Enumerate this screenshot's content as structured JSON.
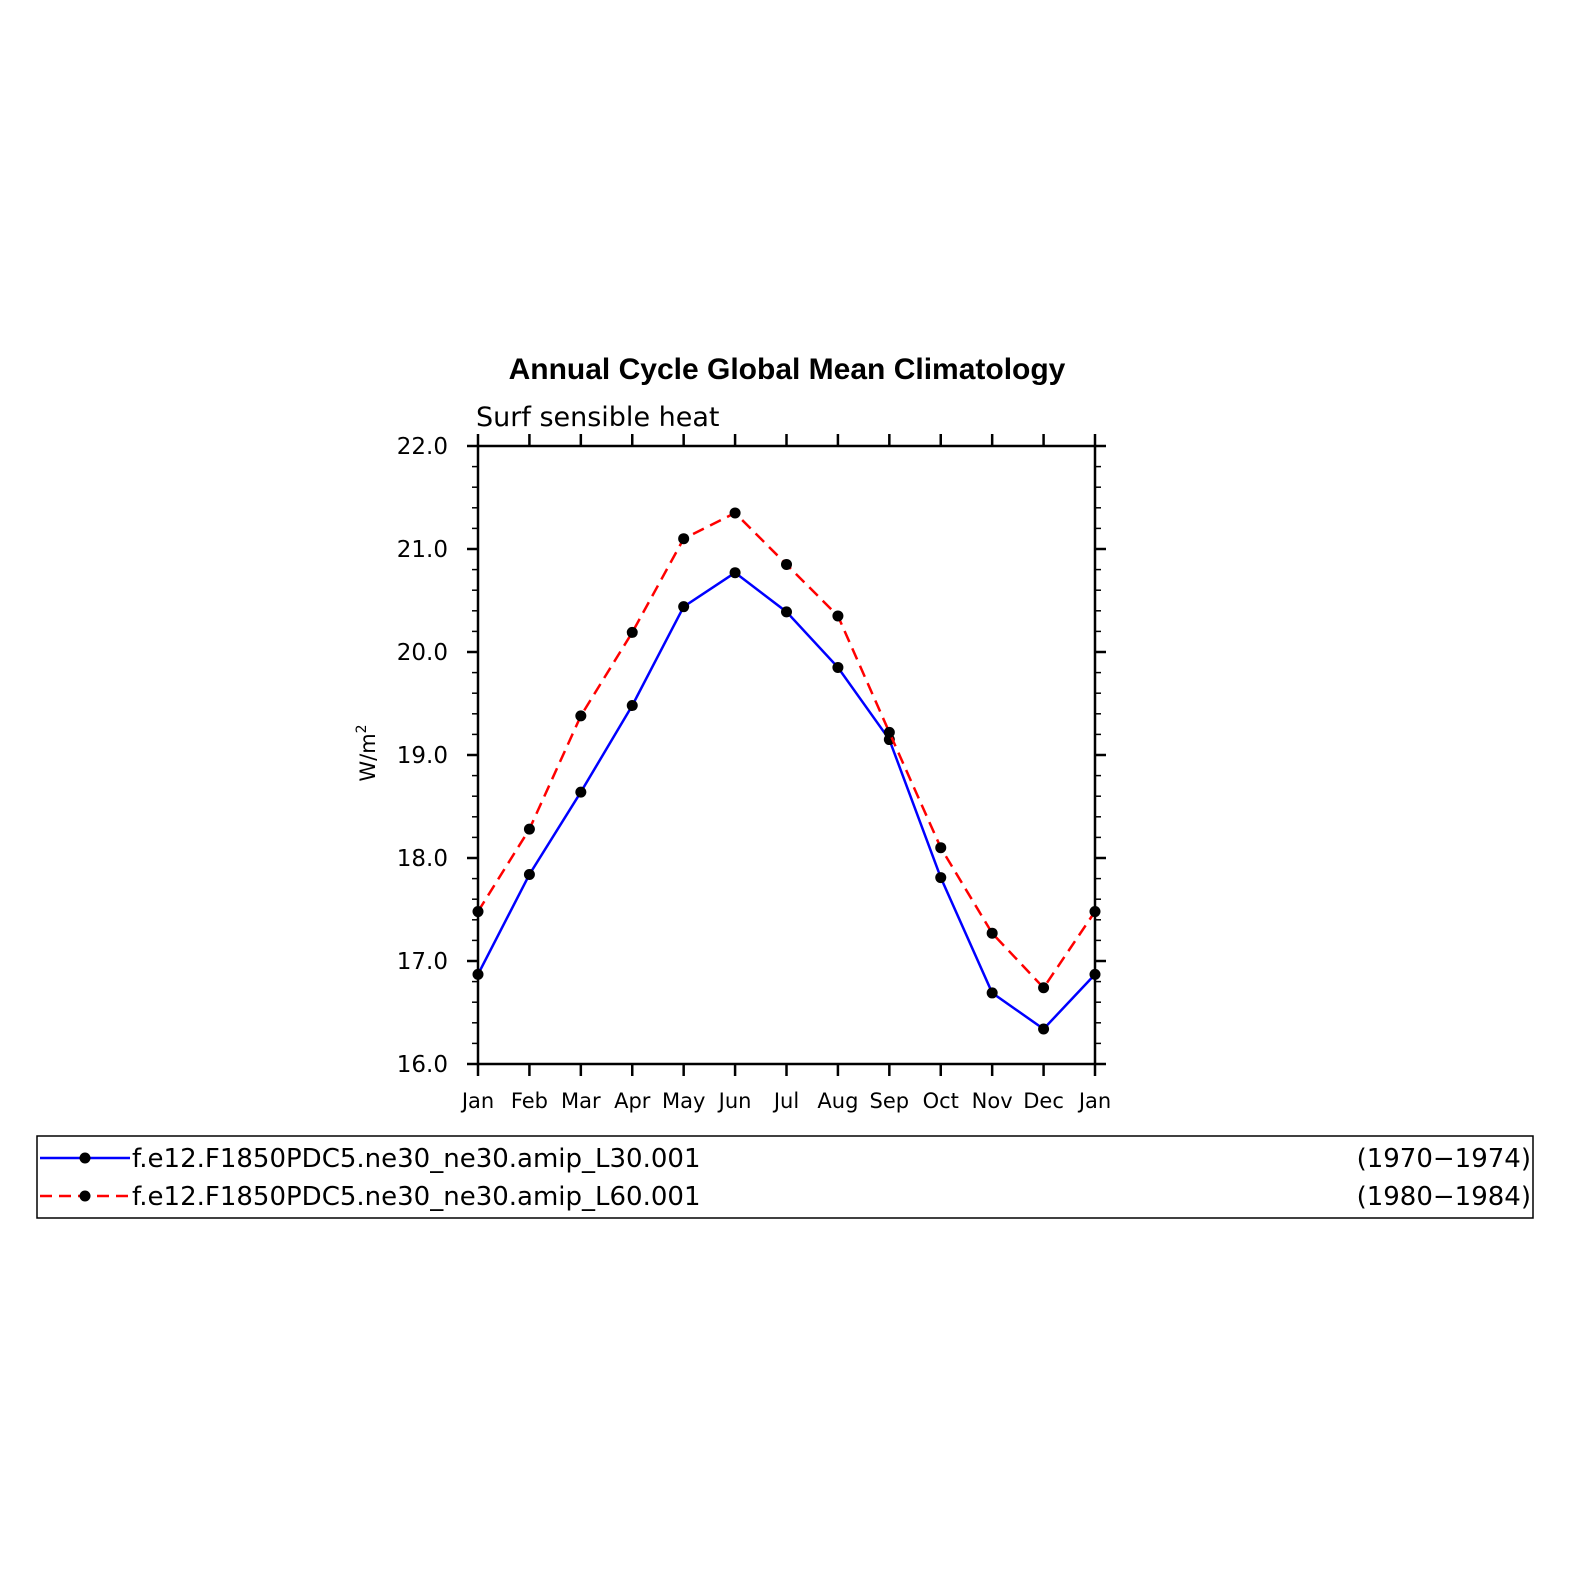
{
  "chart_data": {
    "type": "line",
    "title": "Annual Cycle Global Mean Climatology",
    "subtitle": "Surf sensible heat",
    "ylabel": "W/m",
    "ylabel_sup": "2",
    "xlabel": "",
    "categories": [
      "Jan",
      "Feb",
      "Mar",
      "Apr",
      "May",
      "Jun",
      "Jul",
      "Aug",
      "Sep",
      "Oct",
      "Nov",
      "Dec",
      "Jan"
    ],
    "ylim": [
      16.0,
      22.0
    ],
    "yticks": [
      "16.0",
      "17.0",
      "18.0",
      "19.0",
      "20.0",
      "21.0",
      "22.0"
    ],
    "grid": false,
    "legend_position": "bottom",
    "series": [
      {
        "name": "f.e12.F1850PDC5.ne30_ne30.amip_L30.001",
        "period": "(1970−1974)",
        "color": "#0000ff",
        "dash": "solid",
        "values": [
          16.87,
          17.84,
          18.64,
          19.48,
          20.44,
          20.77,
          20.39,
          19.85,
          19.15,
          17.81,
          16.69,
          16.34,
          16.87
        ]
      },
      {
        "name": "f.e12.F1850PDC5.ne30_ne30.amip_L60.001",
        "period": "(1980−1984)",
        "color": "#ff0000",
        "dash": "dashed",
        "values": [
          17.48,
          18.28,
          19.38,
          20.19,
          21.1,
          21.35,
          20.85,
          20.35,
          19.22,
          18.1,
          17.27,
          16.74,
          17.48
        ]
      }
    ],
    "marker_color": "#000000",
    "axis_color": "#000000"
  }
}
